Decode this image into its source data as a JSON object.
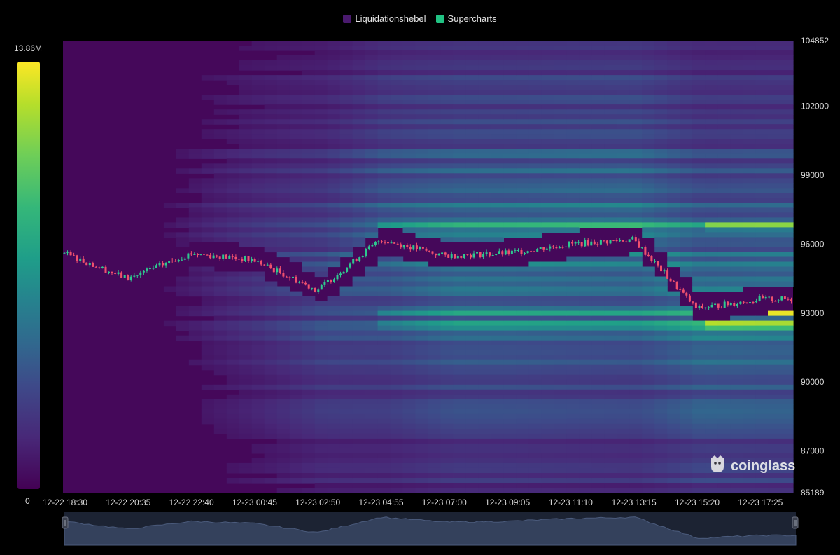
{
  "legend": [
    {
      "label": "Liquidationshebel",
      "color": "#4a1a6e"
    },
    {
      "label": "Supercharts",
      "color": "#21c383"
    }
  ],
  "color_scale": {
    "max_label": "13.86M",
    "min_label": "0"
  },
  "brand": {
    "name": "coinglass"
  },
  "chart_data": {
    "type": "heatmap",
    "title": "",
    "xlabel": "",
    "ylabel": "",
    "x_ticks": [
      "12-22 18:30",
      "12-22 20:35",
      "12-22 22:40",
      "12-23 00:45",
      "12-23 02:50",
      "12-23 04:55",
      "12-23 07:00",
      "12-23 09:05",
      "12-23 11:10",
      "12-23 13:15",
      "12-23 15:20",
      "12-23 17:25"
    ],
    "y_ticks": [
      104852,
      102000,
      99000,
      96000,
      93000,
      90000,
      87000,
      85189
    ],
    "ylim": [
      85189,
      104852
    ],
    "colorbar_range": [
      0,
      13860000
    ],
    "price_series": {
      "name": "",
      "x": [
        "12-22 18:30",
        "12-22 20:35",
        "12-22 22:40",
        "12-23 00:45",
        "12-23 02:50",
        "12-23 04:55",
        "12-23 07:00",
        "12-23 09:05",
        "12-23 11:10",
        "12-23 13:15",
        "12-23 15:20",
        "12-23 17:25"
      ],
      "y": [
        95600,
        94500,
        95600,
        95300,
        94000,
        96200,
        95500,
        95600,
        96000,
        96200,
        93200,
        93600
      ]
    },
    "high_liquidity_levels": [
      {
        "price": 96800,
        "intensity": "high"
      },
      {
        "price": 93000,
        "intensity": "high"
      },
      {
        "price": 92500,
        "intensity": "high"
      }
    ]
  }
}
